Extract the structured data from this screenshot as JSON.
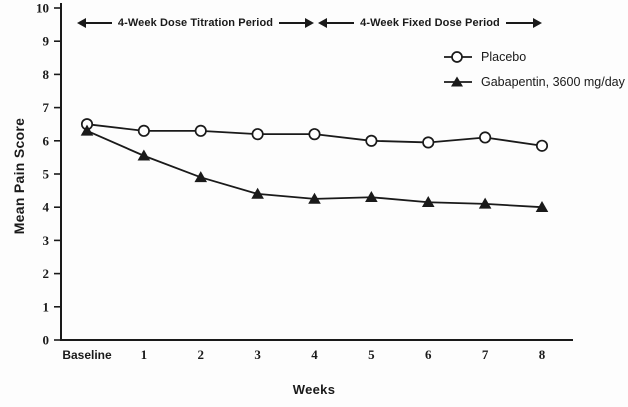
{
  "colors": {
    "ink": "#1a1a1a",
    "background": "#fdfdfd"
  },
  "chart_data": {
    "type": "line",
    "categories": [
      "Baseline",
      "1",
      "2",
      "3",
      "4",
      "5",
      "6",
      "7",
      "8"
    ],
    "series": [
      {
        "name": "Placebo",
        "marker": "circle-open",
        "values": [
          6.5,
          6.3,
          6.3,
          6.2,
          6.2,
          6.0,
          5.95,
          6.1,
          5.85
        ]
      },
      {
        "name": "Gabapentin, 3600 mg/day",
        "marker": "triangle-filled",
        "values": [
          6.3,
          5.55,
          4.9,
          4.4,
          4.25,
          4.3,
          4.15,
          4.1,
          4.0
        ]
      }
    ],
    "title": "",
    "xlabel": "Weeks",
    "ylabel": "Mean Pain Score",
    "ylim": [
      0,
      10
    ],
    "ytick_step": 1,
    "grid": false,
    "legend_position": "upper right",
    "annotations": [
      {
        "label": "4-Week Dose Titration Period",
        "x_start": "Baseline",
        "x_end": "4"
      },
      {
        "label": "4-Week Fixed Dose Period",
        "x_start": "4",
        "x_end": "8"
      }
    ]
  }
}
